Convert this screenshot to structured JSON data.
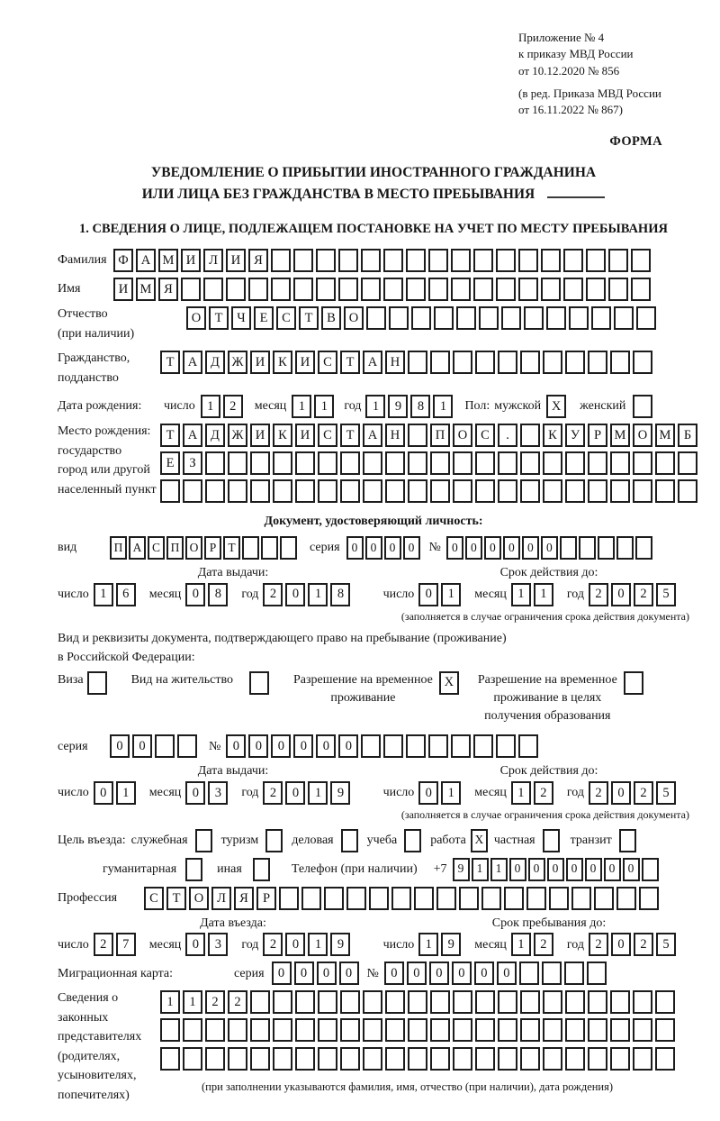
{
  "accent_color": "#1c1c1c",
  "header": {
    "appendix_lines": [
      "Приложение № 4",
      "к приказу МВД России",
      "от 10.12.2020 № 856"
    ],
    "edition_lines": [
      "(в ред. Приказа МВД России",
      "от 16.11.2022 № 867)"
    ],
    "form_label": "ФОРМА"
  },
  "title": {
    "line1": "УВЕДОМЛЕНИЕ О ПРИБЫТИИ ИНОСТРАННОГО ГРАЖДАНИНА",
    "line2": "ИЛИ ЛИЦА БЕЗ ГРАЖДАНСТВА В МЕСТО ПРЕБЫВАНИЯ"
  },
  "section1_heading": "1. СВЕДЕНИЯ О ЛИЦЕ, ПОДЛЕЖАЩЕМ ПОСТАНОВКЕ НА УЧЕТ ПО МЕСТУ ПРЕБЫВАНИЯ",
  "labels": {
    "day": "число",
    "month": "месяц",
    "year": "год",
    "series": "серия",
    "number": "№",
    "issue_date": "Дата выдачи:",
    "valid_until": "Срок действия до:",
    "entry_date": "Дата въезда:",
    "stay_until": "Срок пребывания до:",
    "validity_note": "(заполняется в случае ограничения срока действия документа)"
  },
  "fields": {
    "surname": {
      "label": "Фамилия",
      "value": "ФАМИЛИЯ",
      "count": 24
    },
    "name": {
      "label": "Имя",
      "value": "ИМЯ",
      "count": 24
    },
    "patronymic": {
      "label_lines": [
        "Отчество",
        "(при наличии)"
      ],
      "value": "ОТЧЕСТВО",
      "count": 21
    },
    "citizenship": {
      "label_lines": [
        "Гражданство,",
        "подданство"
      ],
      "value": "ТАДЖИКИСТАН",
      "count": 22
    },
    "birth_date": {
      "label": "Дата рождения:",
      "day": {
        "value": "12",
        "count": 2
      },
      "month": {
        "value": "11",
        "count": 2
      },
      "year": {
        "value": "1981",
        "count": 4
      }
    },
    "gender": {
      "label": "Пол:",
      "male_label": "мужской",
      "male_box": {
        "value": "X",
        "count": 1
      },
      "female_label": "женский",
      "female_box": {
        "value": "",
        "count": 1
      }
    },
    "birth_place": {
      "label_lines": [
        "Место рождения:",
        "государство",
        "город или другой",
        "населенный пункт"
      ],
      "rows": [
        {
          "value": "ТАДЖИКИСТАН ПОС. КУРМОМБ",
          "count": 24
        },
        {
          "value": "ЕЗ",
          "count": 24
        },
        {
          "value": "",
          "count": 24
        }
      ]
    },
    "identity_doc": {
      "heading": "Документ, удостоверяющий личность:",
      "kind_label": "вид",
      "kind": {
        "value": "ПАСПОРТ",
        "count": 10
      },
      "series": {
        "value": "0000",
        "count": 4
      },
      "number": {
        "value": "000000",
        "count": 11
      },
      "issue": {
        "day": {
          "value": "16",
          "count": 2
        },
        "month": {
          "value": "08",
          "count": 2
        },
        "year": {
          "value": "2018",
          "count": 4
        }
      },
      "valid": {
        "day": {
          "value": "01",
          "count": 2
        },
        "month": {
          "value": "11",
          "count": 2
        },
        "year": {
          "value": "2025",
          "count": 4
        }
      }
    },
    "residence_doc": {
      "intro_lines": [
        "Вид и реквизиты документа, подтверждающего право на пребывание (проживание)",
        "в Российской Федерации:"
      ],
      "options": [
        {
          "label_lines": [
            "Виза"
          ],
          "box": {
            "value": "",
            "count": 1
          }
        },
        {
          "label_lines": [
            "Вид на жительство"
          ],
          "box": {
            "value": "",
            "count": 1
          }
        },
        {
          "label_lines": [
            "Разрешение на временное",
            "проживание"
          ],
          "box": {
            "value": "X",
            "count": 1
          }
        },
        {
          "label_lines": [
            "Разрешение на временное",
            "проживание в целях",
            "получения образования"
          ],
          "box": {
            "value": "",
            "count": 1
          }
        }
      ],
      "series": {
        "value": "00",
        "count": 4
      },
      "number": {
        "value": "000000",
        "count": 14
      },
      "issue": {
        "day": {
          "value": "01",
          "count": 2
        },
        "month": {
          "value": "03",
          "count": 2
        },
        "year": {
          "value": "2019",
          "count": 4
        }
      },
      "valid": {
        "day": {
          "value": "01",
          "count": 2
        },
        "month": {
          "value": "12",
          "count": 2
        },
        "year": {
          "value": "2025",
          "count": 4
        }
      }
    },
    "visit_purpose": {
      "label": "Цель въезда:",
      "options_line1": [
        {
          "label": "служебная",
          "box": {
            "value": "",
            "count": 1
          }
        },
        {
          "label": "туризм",
          "box": {
            "value": "",
            "count": 1
          }
        },
        {
          "label": "деловая",
          "box": {
            "value": "",
            "count": 1
          }
        },
        {
          "label": "учеба",
          "box": {
            "value": "",
            "count": 1
          }
        },
        {
          "label": "работа",
          "box": {
            "value": "X",
            "count": 1
          }
        },
        {
          "label": "частная",
          "box": {
            "value": "",
            "count": 1
          }
        },
        {
          "label": "транзит",
          "box": {
            "value": "",
            "count": 1
          }
        }
      ],
      "options_line2": [
        {
          "label": "гуманитарная",
          "box": {
            "value": "",
            "count": 1
          }
        },
        {
          "label": "иная",
          "box": {
            "value": "",
            "count": 1
          }
        }
      ]
    },
    "phone": {
      "label": "Телефон (при наличии)",
      "prefix": "+7",
      "value": "9110000000",
      "count": 11
    },
    "profession": {
      "label": "Профессия",
      "value": "СТОЛЯР",
      "count": 23
    },
    "entry": {
      "day": {
        "value": "27",
        "count": 2
      },
      "month": {
        "value": "03",
        "count": 2
      },
      "year": {
        "value": "2019",
        "count": 4
      }
    },
    "stay": {
      "day": {
        "value": "19",
        "count": 2
      },
      "month": {
        "value": "12",
        "count": 2
      },
      "year": {
        "value": "2025",
        "count": 4
      }
    },
    "migration_card": {
      "label": "Миграционная карта:",
      "series": {
        "value": "0000",
        "count": 4
      },
      "number": {
        "value": "000000",
        "count": 10
      }
    },
    "legal_reps": {
      "label_lines": [
        "Сведения о",
        "законных",
        "представителях",
        "(родителях,",
        "усыновителях,",
        "попечителях)"
      ],
      "rows": [
        {
          "value": "1122",
          "count": 23
        },
        {
          "value": "",
          "count": 23
        },
        {
          "value": "",
          "count": 23
        }
      ],
      "note": "(при заполнении указываются фамилия, имя, отчество (при наличии), дата рождения)"
    }
  }
}
